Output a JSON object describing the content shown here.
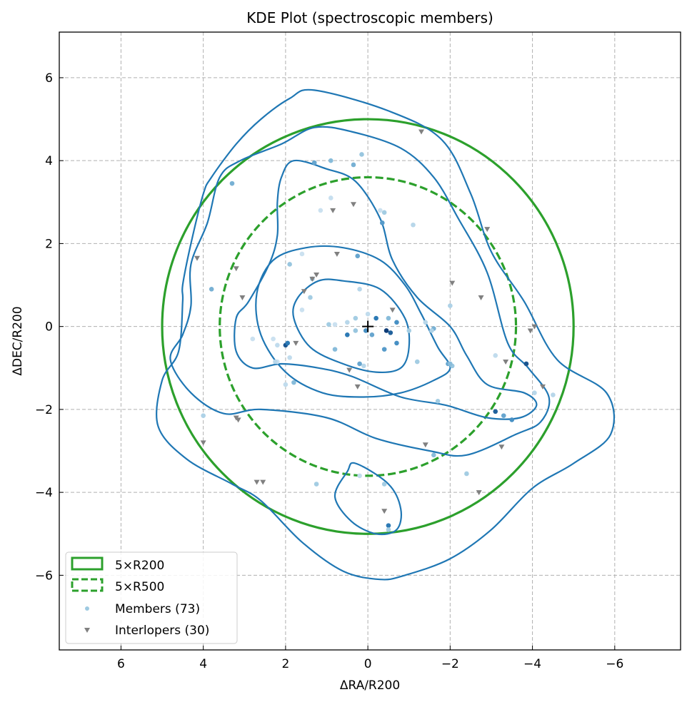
{
  "chart_data": {
    "type": "scatter",
    "title": "KDE Plot (spectroscopic members)",
    "xlabel": "ΔRA/R200",
    "ylabel": "ΔDEC/R200",
    "xlim": [
      7.5,
      -7.6
    ],
    "ylim": [
      -7.8,
      7.1
    ],
    "x_inverted": true,
    "grid": true,
    "legend_position": "lower-left",
    "xticks": [
      6,
      4,
      2,
      0,
      -2,
      -4,
      -6
    ],
    "yticks": [
      6,
      4,
      2,
      0,
      -2,
      -4,
      -6
    ],
    "xtick_labels": [
      "6",
      "4",
      "2",
      "0",
      "−2",
      "−4",
      "−6"
    ],
    "ytick_labels": [
      "6",
      "4",
      "2",
      "0",
      "−2",
      "−4",
      "−6"
    ],
    "colors": {
      "circle": "#2ca02c",
      "contour": "#1f77b4",
      "interloper": "#808080",
      "member_light": "#9ecae1",
      "member_dark": "#08306b"
    },
    "legend": [
      {
        "label": "5×R200",
        "kind": "solid-box"
      },
      {
        "label": "5×R500",
        "kind": "dashed-box"
      },
      {
        "label": "Members (73)",
        "kind": "dot"
      },
      {
        "label": "Interlopers (30)",
        "kind": "triangle"
      }
    ],
    "circles": [
      {
        "name": "5×R200",
        "radius": 5.0,
        "style": "solid"
      },
      {
        "name": "5×R500",
        "radius": 3.6,
        "style": "dashed"
      }
    ],
    "center_marker": {
      "x": 0,
      "y": 0,
      "symbol": "+"
    },
    "contours": [
      {
        "level": 1,
        "closed": true,
        "points": [
          [
            1.3,
            5.7
          ],
          [
            -0.5,
            5.2
          ],
          [
            -1.8,
            4.5
          ],
          [
            -2.5,
            3.2
          ],
          [
            -3.0,
            1.8
          ],
          [
            -3.8,
            0.6
          ],
          [
            -4.6,
            -0.8
          ],
          [
            -5.8,
            -1.6
          ],
          [
            -5.9,
            -2.6
          ],
          [
            -5.0,
            -3.3
          ],
          [
            -4.0,
            -3.9
          ],
          [
            -3.0,
            -4.9
          ],
          [
            -2.0,
            -5.6
          ],
          [
            -0.9,
            -6.0
          ],
          [
            -0.3,
            -6.1
          ],
          [
            0.6,
            -5.9
          ],
          [
            1.6,
            -5.2
          ],
          [
            2.6,
            -4.2
          ],
          [
            3.3,
            -3.8
          ],
          [
            4.4,
            -3.2
          ],
          [
            5.1,
            -2.4
          ],
          [
            5.0,
            -1.3
          ],
          [
            4.6,
            -0.6
          ],
          [
            4.5,
            0.6
          ],
          [
            4.5,
            1.0
          ],
          [
            4.3,
            2.0
          ],
          [
            4.0,
            3.2
          ],
          [
            3.8,
            3.6
          ],
          [
            3.2,
            4.4
          ],
          [
            2.6,
            5.0
          ],
          [
            1.9,
            5.5
          ]
        ]
      },
      {
        "level": 2,
        "closed": true,
        "points": [
          [
            1.3,
            4.8
          ],
          [
            0.4,
            4.7
          ],
          [
            -0.8,
            4.3
          ],
          [
            -1.6,
            3.6
          ],
          [
            -2.2,
            2.6
          ],
          [
            -2.9,
            1.3
          ],
          [
            -3.4,
            -0.4
          ],
          [
            -3.9,
            -1.0
          ],
          [
            -4.4,
            -1.7
          ],
          [
            -4.2,
            -2.3
          ],
          [
            -3.6,
            -2.6
          ],
          [
            -2.4,
            -3.1
          ],
          [
            -1.5,
            -3.0
          ],
          [
            -0.2,
            -2.7
          ],
          [
            1.0,
            -2.2
          ],
          [
            2.6,
            -2.0
          ],
          [
            3.5,
            -2.1
          ],
          [
            4.3,
            -1.6
          ],
          [
            4.8,
            -0.8
          ],
          [
            4.5,
            -0.2
          ],
          [
            4.3,
            0.5
          ],
          [
            4.3,
            1.5
          ],
          [
            3.9,
            2.5
          ],
          [
            3.6,
            3.6
          ],
          [
            3.1,
            4.0
          ],
          [
            2.1,
            4.4
          ]
        ]
      },
      {
        "level": 3,
        "closed": true,
        "points": [
          [
            1.8,
            4.0
          ],
          [
            1.0,
            3.8
          ],
          [
            0.3,
            3.5
          ],
          [
            -0.3,
            2.6
          ],
          [
            -0.6,
            1.6
          ],
          [
            -1.2,
            0.7
          ],
          [
            -2.0,
            0.0
          ],
          [
            -2.4,
            -0.7
          ],
          [
            -2.9,
            -1.4
          ],
          [
            -3.8,
            -1.6
          ],
          [
            -4.1,
            -1.9
          ],
          [
            -3.7,
            -2.2
          ],
          [
            -2.9,
            -2.2
          ],
          [
            -1.9,
            -1.9
          ],
          [
            -0.8,
            -1.7
          ],
          [
            0.4,
            -1.2
          ],
          [
            1.2,
            -1.0
          ],
          [
            2.1,
            -0.9
          ],
          [
            2.8,
            -1.0
          ],
          [
            3.2,
            -0.6
          ],
          [
            3.2,
            0.2
          ],
          [
            2.9,
            0.6
          ],
          [
            2.4,
            1.5
          ],
          [
            2.2,
            2.2
          ],
          [
            2.2,
            3.0
          ],
          [
            2.1,
            3.6
          ]
        ]
      },
      {
        "level": 4,
        "closed": true,
        "points": [
          [
            0.6,
            1.9
          ],
          [
            -0.3,
            1.6
          ],
          [
            -0.9,
            1.0
          ],
          [
            -1.3,
            0.3
          ],
          [
            -1.7,
            -0.5
          ],
          [
            -2.0,
            -1.0
          ],
          [
            -1.6,
            -1.3
          ],
          [
            -0.8,
            -1.6
          ],
          [
            0.1,
            -1.7
          ],
          [
            1.1,
            -1.6
          ],
          [
            2.0,
            -1.1
          ],
          [
            2.6,
            -0.2
          ],
          [
            2.7,
            0.8
          ],
          [
            2.3,
            1.6
          ],
          [
            1.5,
            1.9
          ]
        ]
      },
      {
        "level": 5,
        "closed": true,
        "points": [
          [
            0.6,
            1.1
          ],
          [
            -0.3,
            0.9
          ],
          [
            -0.9,
            0.2
          ],
          [
            -1.0,
            -0.5
          ],
          [
            -0.8,
            -1.0
          ],
          [
            -0.2,
            -1.1
          ],
          [
            0.6,
            -0.9
          ],
          [
            1.4,
            -0.5
          ],
          [
            1.8,
            0.2
          ],
          [
            1.7,
            0.7
          ],
          [
            1.2,
            1.1
          ]
        ]
      },
      {
        "level": 6,
        "closed": true,
        "points": [
          [
            0.3,
            -3.3
          ],
          [
            -0.5,
            -3.8
          ],
          [
            -0.8,
            -4.4
          ],
          [
            -0.7,
            -4.9
          ],
          [
            -0.2,
            -5.0
          ],
          [
            0.4,
            -4.7
          ],
          [
            0.8,
            -4.1
          ],
          [
            0.5,
            -3.5
          ]
        ]
      }
    ],
    "members": [
      {
        "x": 3.3,
        "y": 3.45,
        "shade": 0.45
      },
      {
        "x": 1.3,
        "y": 3.95,
        "shade": 0.5
      },
      {
        "x": 0.9,
        "y": 4.0,
        "shade": 0.4
      },
      {
        "x": 0.35,
        "y": 3.9,
        "shade": 0.45
      },
      {
        "x": 0.15,
        "y": 4.15,
        "shade": 0.35
      },
      {
        "x": 0.9,
        "y": 3.1,
        "shade": 0.12
      },
      {
        "x": -0.4,
        "y": 2.75,
        "shade": 0.3
      },
      {
        "x": -0.35,
        "y": 2.5,
        "shade": 0.55
      },
      {
        "x": -1.1,
        "y": 2.45,
        "shade": 0.2
      },
      {
        "x": 1.6,
        "y": 1.75,
        "shade": 0.1
      },
      {
        "x": 0.25,
        "y": 1.7,
        "shade": 0.5
      },
      {
        "x": 1.9,
        "y": 1.5,
        "shade": 0.35
      },
      {
        "x": 3.8,
        "y": 0.9,
        "shade": 0.45
      },
      {
        "x": 1.35,
        "y": 1.15,
        "shade": 0.35
      },
      {
        "x": 1.4,
        "y": 0.7,
        "shade": 0.3
      },
      {
        "x": 0.2,
        "y": 0.9,
        "shade": 0.2
      },
      {
        "x": -2.0,
        "y": 0.5,
        "shade": 0.25
      },
      {
        "x": -1.6,
        "y": -0.05,
        "shade": 0.45
      },
      {
        "x": 0.95,
        "y": 0.05,
        "shade": 0.3
      },
      {
        "x": 0.5,
        "y": 0.1,
        "shade": 0.2
      },
      {
        "x": 0.3,
        "y": 0.2,
        "shade": 0.3
      },
      {
        "x": 0.0,
        "y": 0.3,
        "shade": 0.15
      },
      {
        "x": 0.05,
        "y": -0.1,
        "shade": 0.6
      },
      {
        "x": -0.1,
        "y": -0.2,
        "shade": 0.5
      },
      {
        "x": 0.5,
        "y": -0.2,
        "shade": 0.7
      },
      {
        "x": 0.3,
        "y": -0.1,
        "shade": 0.35
      },
      {
        "x": -0.2,
        "y": 0.2,
        "shade": 0.7
      },
      {
        "x": -0.45,
        "y": -0.1,
        "shade": 0.95
      },
      {
        "x": -0.55,
        "y": -0.15,
        "shade": 0.8
      },
      {
        "x": -0.7,
        "y": 0.1,
        "shade": 0.6
      },
      {
        "x": -0.7,
        "y": -0.4,
        "shade": 0.6
      },
      {
        "x": -0.4,
        "y": -0.55,
        "shade": 0.55
      },
      {
        "x": -0.5,
        "y": 0.2,
        "shade": 0.4
      },
      {
        "x": 0.8,
        "y": -0.55,
        "shade": 0.4
      },
      {
        "x": 0.2,
        "y": -0.9,
        "shade": 0.5
      },
      {
        "x": 0.1,
        "y": -0.95,
        "shade": 0.2
      },
      {
        "x": -1.2,
        "y": -0.85,
        "shade": 0.3
      },
      {
        "x": -1.55,
        "y": -0.1,
        "shade": 0.25
      },
      {
        "x": 2.2,
        "y": -0.45,
        "shade": 0.15
      },
      {
        "x": 2.0,
        "y": -0.45,
        "shade": 0.85
      },
      {
        "x": 2.2,
        "y": -0.85,
        "shade": 0.1
      },
      {
        "x": 1.95,
        "y": -0.4,
        "shade": 0.7
      },
      {
        "x": 1.8,
        "y": -1.35,
        "shade": 0.4
      },
      {
        "x": 2.3,
        "y": -0.3,
        "shade": 0.1
      },
      {
        "x": -1.4,
        "y": 0.1,
        "shade": 0.2
      },
      {
        "x": -1.95,
        "y": -0.9,
        "shade": 0.5
      },
      {
        "x": -2.05,
        "y": -0.95,
        "shade": 0.35
      },
      {
        "x": -3.1,
        "y": -2.05,
        "shade": 0.8
      },
      {
        "x": -3.3,
        "y": -2.15,
        "shade": 0.5
      },
      {
        "x": -3.5,
        "y": -2.25,
        "shade": 0.6
      },
      {
        "x": -3.85,
        "y": -0.9,
        "shade": 0.85
      },
      {
        "x": -4.05,
        "y": -1.6,
        "shade": 0.2
      },
      {
        "x": -4.5,
        "y": -1.65,
        "shade": 0.2
      },
      {
        "x": -3.1,
        "y": -0.7,
        "shade": 0.15
      },
      {
        "x": -1.7,
        "y": -1.8,
        "shade": 0.3
      },
      {
        "x": -1.6,
        "y": -3.1,
        "shade": 0.4
      },
      {
        "x": -2.4,
        "y": -3.55,
        "shade": 0.3
      },
      {
        "x": 4.0,
        "y": -2.15,
        "shade": 0.25
      },
      {
        "x": 2.0,
        "y": -1.4,
        "shade": 0.15
      },
      {
        "x": 1.25,
        "y": -3.8,
        "shade": 0.3
      },
      {
        "x": -0.4,
        "y": -3.8,
        "shade": 0.3
      },
      {
        "x": -0.5,
        "y": -4.8,
        "shade": 0.7
      },
      {
        "x": -0.5,
        "y": -4.9,
        "shade": 0.3
      },
      {
        "x": 0.2,
        "y": -3.6,
        "shade": 0.15
      },
      {
        "x": 2.25,
        "y": -0.85,
        "shade": 0.2
      },
      {
        "x": 2.8,
        "y": -0.3,
        "shade": 0.1
      },
      {
        "x": 1.9,
        "y": -0.75,
        "shade": 0.15
      },
      {
        "x": 0.8,
        "y": 0.05,
        "shade": 0.1
      },
      {
        "x": -2.0,
        "y": -0.9,
        "shade": 0.4
      },
      {
        "x": -0.3,
        "y": 2.8,
        "shade": 0.1
      },
      {
        "x": 1.15,
        "y": 2.8,
        "shade": 0.1
      },
      {
        "x": 1.6,
        "y": 0.4,
        "shade": 0.1
      },
      {
        "x": -1.0,
        "y": -0.1,
        "shade": 0.3
      }
    ],
    "interlopers": [
      {
        "x": -1.3,
        "y": 4.7
      },
      {
        "x": 0.85,
        "y": 2.8
      },
      {
        "x": 0.35,
        "y": 2.95
      },
      {
        "x": -2.9,
        "y": 2.35
      },
      {
        "x": 4.15,
        "y": 1.65
      },
      {
        "x": 3.2,
        "y": 1.4
      },
      {
        "x": 0.75,
        "y": 1.75
      },
      {
        "x": 1.25,
        "y": 1.25
      },
      {
        "x": 1.35,
        "y": 1.15
      },
      {
        "x": 1.55,
        "y": 0.85
      },
      {
        "x": 3.05,
        "y": 0.7
      },
      {
        "x": -2.05,
        "y": 1.05
      },
      {
        "x": -2.75,
        "y": 0.7
      },
      {
        "x": -0.6,
        "y": 0.4
      },
      {
        "x": 1.75,
        "y": -0.4
      },
      {
        "x": 0.45,
        "y": -1.05
      },
      {
        "x": 0.25,
        "y": -1.45
      },
      {
        "x": -4.05,
        "y": 0.0
      },
      {
        "x": -3.95,
        "y": -0.1
      },
      {
        "x": -3.35,
        "y": -0.85
      },
      {
        "x": -4.25,
        "y": -1.45
      },
      {
        "x": 3.2,
        "y": -2.2
      },
      {
        "x": 3.15,
        "y": -2.25
      },
      {
        "x": 4.0,
        "y": -2.8
      },
      {
        "x": -1.4,
        "y": -2.85
      },
      {
        "x": -3.25,
        "y": -2.9
      },
      {
        "x": 2.7,
        "y": -3.75
      },
      {
        "x": 2.55,
        "y": -3.75
      },
      {
        "x": -2.7,
        "y": -4.0
      },
      {
        "x": -0.4,
        "y": -4.45
      }
    ]
  }
}
